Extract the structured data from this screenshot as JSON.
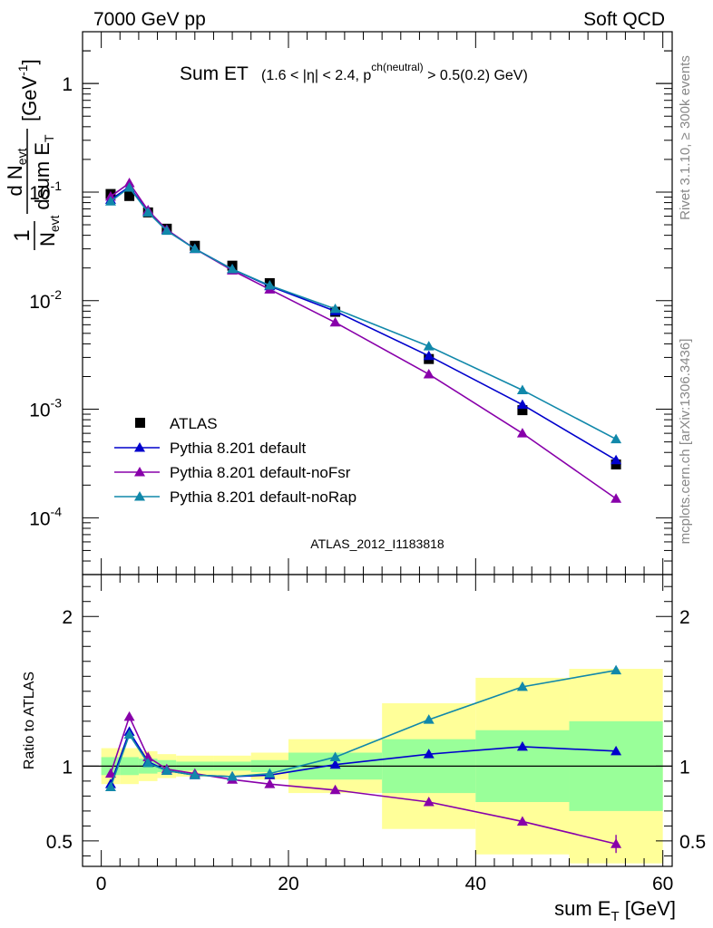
{
  "header": {
    "left": "7000 GeV pp",
    "right": "Soft QCD"
  },
  "side": {
    "rivet": "Rivet 3.1.10, ≥ 300k events",
    "mcplots": "mcplots.cern.ch [arXiv:1306.3436]"
  },
  "chart_data": [
    {
      "type": "line",
      "title_main": "Sum ET",
      "title_detail_pre": "(1.6 < |η| < 2.4, p",
      "title_detail_sup": "ch(neutral)",
      "title_detail_post": " > 0.5(0.2) GeV)",
      "ylabel_num": "d N",
      "ylabel_num_sub": "evt",
      "ylabel_den": "dsum E",
      "ylabel_den_sub": "T",
      "ylabel_pre_one": "1",
      "ylabel_pre_n": "N",
      "ylabel_pre_sub": "evt",
      "ylabel_unit": "[GeV",
      "ylabel_unit_sup": "-1",
      "ylabel_unit_close": "]",
      "yscale": "log",
      "ylim": [
        3e-05,
        3
      ],
      "xlim": [
        -2,
        61
      ],
      "yticks": [
        {
          "v": 1,
          "base": "1",
          "exp": ""
        },
        {
          "v": 0.1,
          "base": "10",
          "exp": "-1"
        },
        {
          "v": 0.01,
          "base": "10",
          "exp": "-2"
        },
        {
          "v": 0.001,
          "base": "10",
          "exp": "-3"
        },
        {
          "v": 0.0001,
          "base": "10",
          "exp": "-4"
        }
      ],
      "watermark": "ATLAS_2012_I1183818",
      "legend_position": "bottom-left",
      "x": [
        1,
        3,
        5,
        7,
        10,
        14,
        18,
        25,
        35,
        45,
        55
      ],
      "series": [
        {
          "name": "ATLAS",
          "marker": "square",
          "color": "#000000",
          "values": [
            0.096,
            0.092,
            0.065,
            0.046,
            0.032,
            0.021,
            0.0145,
            0.0079,
            0.0029,
            0.00098,
            0.00031
          ]
        },
        {
          "name": "Pythia 8.201 default",
          "marker": "triangle",
          "color": "#0000cc",
          "values": [
            0.085,
            0.112,
            0.066,
            0.045,
            0.03,
            0.0195,
            0.0136,
            0.008,
            0.0031,
            0.0011,
            0.00034
          ]
        },
        {
          "name": "Pythia 8.201 default-noFsr",
          "marker": "triangle",
          "color": "#8800aa",
          "values": [
            0.091,
            0.121,
            0.068,
            0.045,
            0.03,
            0.019,
            0.0127,
            0.0063,
            0.0021,
            0.0006,
            0.00015
          ]
        },
        {
          "name": "Pythia 8.201 default-noRap",
          "marker": "triangle",
          "color": "#1188aa",
          "values": [
            0.082,
            0.11,
            0.065,
            0.044,
            0.03,
            0.0195,
            0.0138,
            0.0084,
            0.0038,
            0.0015,
            0.00053
          ]
        }
      ]
    },
    {
      "type": "line",
      "ylabel": "Ratio to ATLAS",
      "xlabel_main": "sum E",
      "xlabel_sub": "T",
      "xlabel_unit": "[GeV]",
      "ylim": [
        0.33,
        2.28
      ],
      "xlim": [
        -2,
        61
      ],
      "yticks": [
        "0.5",
        "1",
        "2"
      ],
      "xticks": [
        "0",
        "20",
        "40",
        "60"
      ],
      "bands": {
        "edges": [
          0,
          2,
          4,
          6,
          8,
          12,
          16,
          20,
          30,
          40,
          50,
          60
        ],
        "yellow_lo": [
          0.88,
          0.88,
          0.9,
          0.92,
          0.93,
          0.93,
          0.91,
          0.82,
          0.58,
          0.41,
          0.35
        ],
        "yellow_hi": [
          1.12,
          1.12,
          1.1,
          1.08,
          1.07,
          1.07,
          1.09,
          1.18,
          1.42,
          1.59,
          1.65
        ],
        "green_lo": [
          0.94,
          0.94,
          0.95,
          0.96,
          0.97,
          0.97,
          0.96,
          0.91,
          0.82,
          0.76,
          0.7
        ],
        "green_hi": [
          1.06,
          1.06,
          1.05,
          1.04,
          1.03,
          1.03,
          1.04,
          1.09,
          1.18,
          1.24,
          1.3
        ]
      },
      "x": [
        1,
        3,
        5,
        7,
        10,
        14,
        18,
        25,
        35,
        45,
        55
      ],
      "series": [
        {
          "name": "Pythia 8.201 default",
          "color": "#0000cc",
          "values": [
            0.88,
            1.23,
            1.03,
            0.97,
            0.94,
            0.93,
            0.94,
            1.01,
            1.08,
            1.13,
            1.1
          ]
        },
        {
          "name": "Pythia 8.201 default-noFsr",
          "color": "#8800aa",
          "values": [
            0.95,
            1.33,
            1.06,
            0.98,
            0.95,
            0.91,
            0.88,
            0.84,
            0.76,
            0.63,
            0.48
          ]
        },
        {
          "name": "Pythia 8.201 default-noRap",
          "color": "#1188aa",
          "values": [
            0.86,
            1.21,
            1.02,
            0.97,
            0.94,
            0.93,
            0.95,
            1.06,
            1.31,
            1.53,
            1.64
          ]
        }
      ]
    }
  ]
}
